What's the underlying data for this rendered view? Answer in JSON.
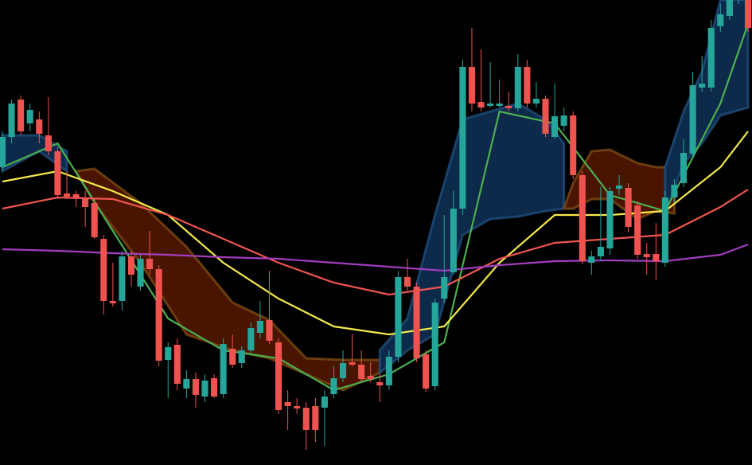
{
  "chart_data": {
    "type": "candlestick",
    "ylim": [
      16,
      600
    ],
    "up_color": "#26a69a",
    "down_color": "#ef5350",
    "categories": [
      null,
      null,
      null,
      null,
      null,
      null,
      null,
      null,
      null,
      null,
      null,
      null,
      null,
      null,
      null,
      null,
      null,
      null,
      null,
      null,
      null,
      null,
      null,
      null,
      null,
      null,
      null,
      null,
      null,
      null,
      null,
      null,
      null,
      null,
      null,
      null,
      null,
      null,
      null,
      null,
      null,
      null,
      null,
      null,
      null,
      null,
      null,
      null,
      null,
      null,
      null,
      null,
      null,
      null,
      null,
      null,
      null,
      null,
      null,
      null,
      null,
      null,
      null,
      null,
      null,
      null,
      null,
      null,
      null,
      null,
      null,
      null,
      null,
      null,
      null,
      null,
      null,
      null,
      null,
      null,
      null,
      null
    ],
    "open": [
      390,
      428,
      475,
      445,
      450,
      430,
      410,
      357,
      356,
      350,
      345,
      300,
      222,
      222,
      278,
      240,
      275,
      262,
      148,
      167,
      112,
      124,
      102,
      125,
      105,
      162,
      144,
      160,
      182,
      198,
      170,
      95,
      90,
      88,
      90,
      88,
      105,
      125,
      145,
      142,
      128,
      120,
      116,
      152,
      252,
      240,
      155,
      115,
      225,
      258,
      338,
      516,
      472,
      467,
      467,
      467,
      464,
      516,
      470,
      476,
      428,
      442,
      455,
      380,
      270,
      278,
      288,
      363,
      364,
      342,
      281,
      281,
      270,
      352,
      370,
      407,
      490,
      490,
      567,
      580,
      600,
      615
    ],
    "high": [
      435,
      475,
      480,
      470,
      460,
      478,
      415,
      385,
      360,
      360,
      350,
      305,
      270,
      285,
      285,
      280,
      310,
      267,
      170,
      175,
      135,
      132,
      130,
      130,
      175,
      180,
      165,
      195,
      222,
      260,
      175,
      110,
      100,
      95,
      100,
      110,
      140,
      160,
      180,
      160,
      145,
      130,
      160,
      260,
      275,
      245,
      160,
      225,
      330,
      360,
      525,
      565,
      538,
      522,
      500,
      485,
      532,
      525,
      497,
      480,
      495,
      465,
      460,
      385,
      285,
      365,
      365,
      380,
      370,
      347,
      295,
      320,
      360,
      375,
      425,
      510,
      530,
      575,
      595,
      605,
      640,
      625
    ],
    "low": [
      385,
      420,
      430,
      435,
      420,
      405,
      350,
      350,
      340,
      315,
      300,
      205,
      215,
      210,
      240,
      235,
      255,
      140,
      100,
      110,
      100,
      88,
      95,
      100,
      100,
      138,
      138,
      155,
      175,
      168,
      80,
      60,
      80,
      35,
      45,
      40,
      100,
      120,
      140,
      120,
      120,
      95,
      110,
      145,
      235,
      145,
      108,
      110,
      220,
      255,
      330,
      460,
      460,
      465,
      465,
      460,
      460,
      465,
      465,
      428,
      425,
      435,
      375,
      268,
      255,
      272,
      280,
      355,
      308,
      275,
      255,
      248,
      265,
      345,
      365,
      400,
      485,
      485,
      560,
      575,
      595,
      560
    ],
    "close": [
      428,
      470,
      435,
      462,
      432,
      410,
      355,
      353,
      352,
      340,
      302,
      222,
      219,
      278,
      255,
      275,
      262,
      147,
      164,
      118,
      124,
      104,
      122,
      102,
      168,
      142,
      160,
      188,
      197,
      172,
      85,
      90,
      87,
      60,
      60,
      102,
      125,
      144,
      142,
      124,
      124,
      116,
      152,
      252,
      240,
      150,
      112,
      220,
      252,
      338,
      516,
      470,
      465,
      470,
      470,
      464,
      516,
      470,
      476,
      432,
      454,
      455,
      380,
      272,
      278,
      290,
      360,
      367,
      315,
      280,
      277,
      272,
      352,
      368,
      408,
      493,
      495,
      565,
      582,
      600,
      630,
      565
    ],
    "lines": [
      {
        "color": "#4caf50",
        "x": [
          0,
          6,
          12,
          18,
          24,
          30,
          36,
          42,
          48,
          54,
          60,
          66,
          72,
          78,
          81
        ],
        "values": [
          390,
          420,
          310,
          200,
          160,
          150,
          110,
          130,
          170,
          460,
          445,
          355,
          335,
          470,
          570
        ]
      },
      {
        "color": "#f5e94a",
        "x": [
          0,
          6,
          12,
          18,
          24,
          30,
          36,
          42,
          48,
          54,
          60,
          66,
          72,
          78,
          81
        ],
        "values": [
          372,
          385,
          360,
          330,
          270,
          225,
          190,
          180,
          190,
          270,
          330,
          330,
          335,
          390,
          435
        ]
      },
      {
        "color": "#f0554f",
        "x": [
          0,
          6,
          12,
          18,
          24,
          30,
          36,
          42,
          48,
          54,
          60,
          66,
          72,
          78,
          81
        ],
        "values": [
          338,
          352,
          350,
          330,
          300,
          270,
          245,
          230,
          240,
          275,
          295,
          300,
          305,
          340,
          362
        ]
      },
      {
        "color": "#a23cc0",
        "x": [
          0,
          6,
          12,
          18,
          24,
          30,
          36,
          42,
          48,
          54,
          60,
          66,
          72,
          78,
          81
        ],
        "values": [
          287,
          285,
          282,
          280,
          277,
          275,
          270,
          265,
          260,
          267,
          272,
          273,
          272,
          280,
          293
        ]
      }
    ],
    "bands": [
      {
        "color": "#0d2a4a",
        "edge": "#1f4d7d",
        "x": [
          0,
          4,
          7
        ],
        "upper": [
          430,
          430,
          410
        ],
        "lower": [
          385,
          410,
          385
        ]
      },
      {
        "color": "#4a1500",
        "edge": "#7a4a10",
        "x": [
          8,
          10,
          15,
          20,
          25,
          29,
          33,
          37,
          41
        ],
        "upper": [
          385,
          388,
          345,
          290,
          220,
          198,
          150,
          148,
          148
        ],
        "lower": [
          385,
          345,
          270,
          180,
          160,
          150,
          130,
          110,
          132
        ]
      },
      {
        "color": "#0d2a4a",
        "edge": "#1f4d7d",
        "x": [
          41,
          44,
          47,
          50,
          53,
          56,
          59,
          61
        ],
        "upper": [
          160,
          200,
          330,
          450,
          460,
          470,
          450,
          420
        ],
        "lower": [
          132,
          160,
          180,
          305,
          325,
          328,
          335,
          338
        ]
      },
      {
        "color": "#4a1500",
        "edge": "#7a4a10",
        "x": [
          61,
          62,
          64,
          66,
          69,
          71,
          73
        ],
        "upper": [
          338,
          370,
          410,
          412,
          395,
          390,
          390
        ],
        "lower": [
          338,
          338,
          350,
          350,
          325,
          335,
          332
        ]
      },
      {
        "color": "#0d2a4a",
        "edge": "#1f4d7d",
        "x": [
          72,
          74,
          76,
          78,
          81
        ],
        "upper": [
          390,
          460,
          510,
          600,
          600
        ],
        "lower": [
          332,
          395,
          420,
          455,
          465
        ]
      }
    ]
  }
}
